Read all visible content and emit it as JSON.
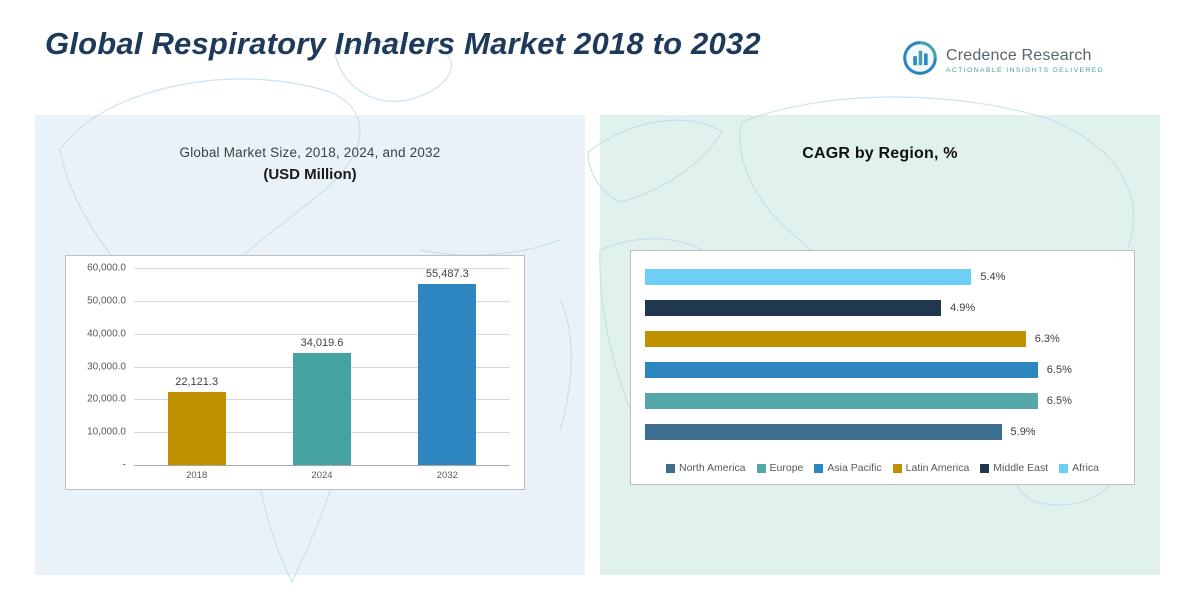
{
  "page": {
    "title": "Global Respiratory Inhalers Market 2018 to 2032"
  },
  "logo": {
    "name": "Credence Research",
    "tagline": "Actionable Insights Delivered",
    "accent_teal": "#3aa7a3",
    "accent_blue": "#2e86c1"
  },
  "chart_data": [
    {
      "type": "bar",
      "title": "Global Market Size, 2018, 2024, and 2032",
      "subtitle": "(USD Million)",
      "categories": [
        "2018",
        "2024",
        "2032"
      ],
      "values": [
        22121.3,
        34019.6,
        55487.3
      ],
      "data_labels": [
        "22,121.3",
        "34,019.6",
        "55,487.3"
      ],
      "bar_colors": [
        "#bf9000",
        "#45a3a3",
        "#2e86c1"
      ],
      "ylim": [
        0,
        60000
      ],
      "ytick_labels": [
        "60,000.0",
        "50,000.0",
        "40,000.0",
        "30,000.0",
        "20,000.0",
        "10,000.0",
        "-"
      ],
      "grid": true,
      "legend_position": "none"
    },
    {
      "type": "bar-horizontal",
      "title": "CAGR by Region, %",
      "categories": [
        "Africa",
        "Middle East",
        "Latin America",
        "Asia Pacific",
        "Europe",
        "North America"
      ],
      "values": [
        5.4,
        4.9,
        6.3,
        6.5,
        6.5,
        5.9
      ],
      "data_labels": [
        "5.4%",
        "4.9%",
        "6.3%",
        "6.5%",
        "6.5%",
        "5.9%"
      ],
      "bar_colors": [
        "#6dcff6",
        "#21374d",
        "#bf9000",
        "#2e86c1",
        "#55a8a8",
        "#3d6e8f"
      ],
      "xlim": [
        0,
        7
      ],
      "grid": false,
      "legend_position": "bottom",
      "legend": [
        {
          "label": "North America",
          "color": "#3d6e8f"
        },
        {
          "label": "Europe",
          "color": "#55a8a8"
        },
        {
          "label": "Asia Pacific",
          "color": "#2e86c1"
        },
        {
          "label": "Latin America",
          "color": "#bf9000"
        },
        {
          "label": "Middle East",
          "color": "#21374d"
        },
        {
          "label": "Africa",
          "color": "#6dcff6"
        }
      ]
    }
  ]
}
